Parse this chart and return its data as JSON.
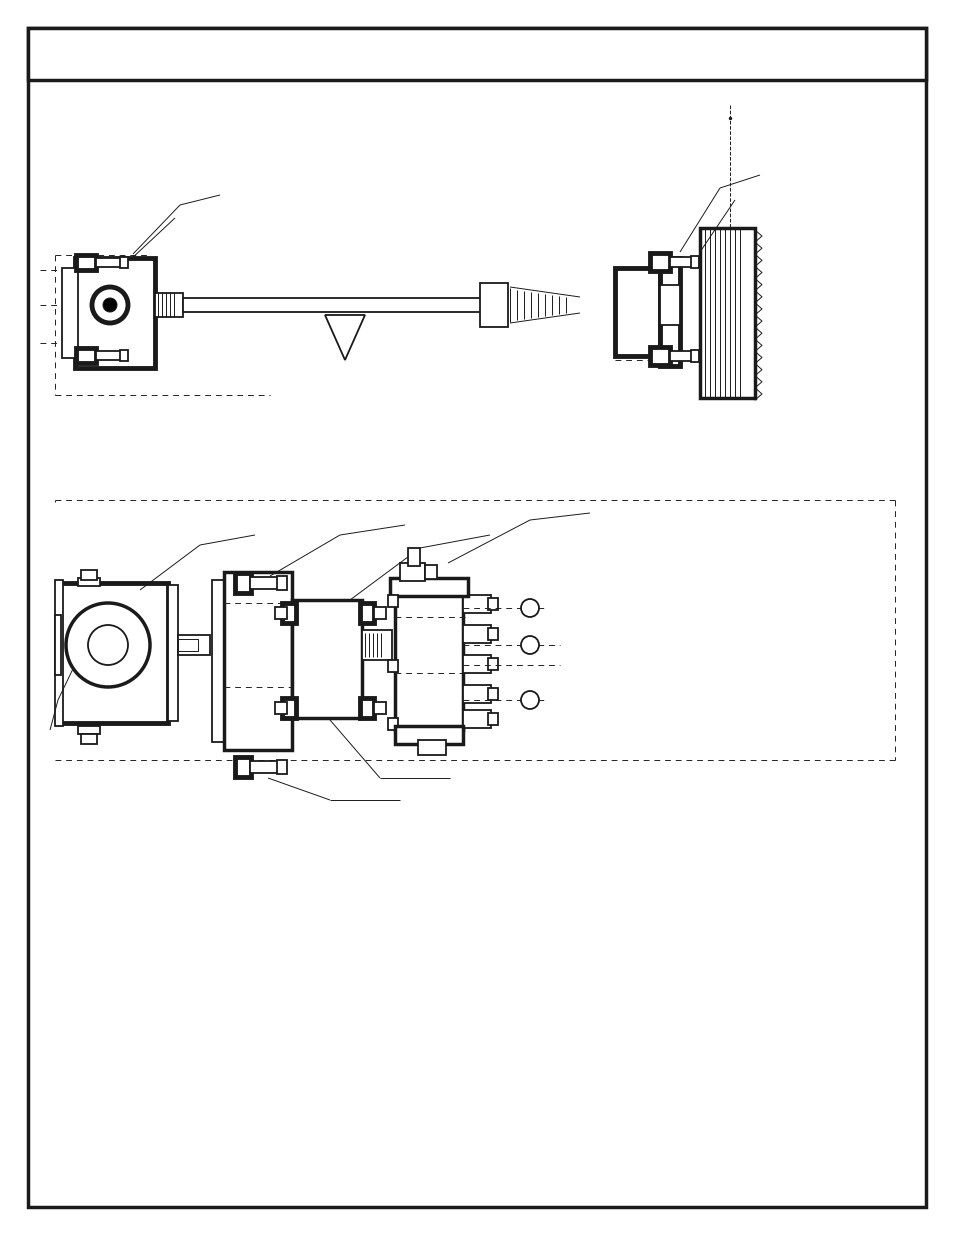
{
  "bg_color": "#ffffff",
  "lc": "#1a1a1a",
  "lw_thin": 0.7,
  "lw_med": 1.3,
  "lw_thick": 2.5,
  "lw_bold": 3.5
}
